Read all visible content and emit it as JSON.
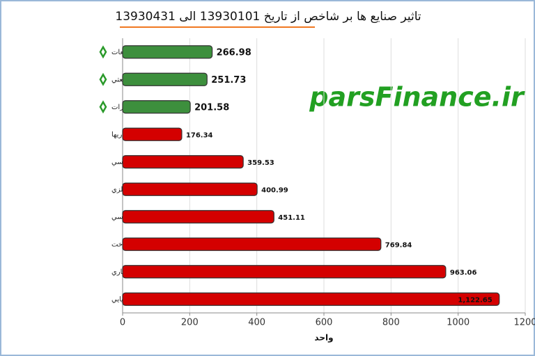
{
  "chart_data": {
    "type": "bar",
    "orientation": "horizontal",
    "title": "تاثیر صنایع ها بر شاخص از تاریخ 13930101 الی 13930431",
    "watermark": "parsFinance.ir",
    "xlabel": "واحد",
    "categories": [
      "خودرو و ساخت قطعات",
      "شركتهاي چند رشته اي صنعتي",
      "مخابرات",
      "سرمايه گذاريها",
      "فلزات اساسي",
      "استخراج كانه هاي فلزي",
      "خدمات فني و مهندسي",
      "فراورده هاي نفتي، كك و سوخت",
      "بانكها و موسسات اعتباري",
      "محصولات شيميايي"
    ],
    "values": [
      266.98,
      251.73,
      201.58,
      176.34,
      359.53,
      400.99,
      451.11,
      769.84,
      963.06,
      1122.65
    ],
    "value_labels": [
      "266.98",
      "251.73",
      "201.58",
      "176.34",
      "359.53",
      "400.99",
      "451.11",
      "769.84",
      "963.06",
      "1,122.65"
    ],
    "colors": [
      "#3d8f3d",
      "#3d8f3d",
      "#3d8f3d",
      "#d40000",
      "#d40000",
      "#d40000",
      "#d40000",
      "#d40000",
      "#d40000",
      "#d40000"
    ],
    "xlim": [
      0,
      1200
    ],
    "xticks": [
      0,
      200,
      400,
      600,
      800,
      1000,
      1200
    ],
    "grid": true
  }
}
